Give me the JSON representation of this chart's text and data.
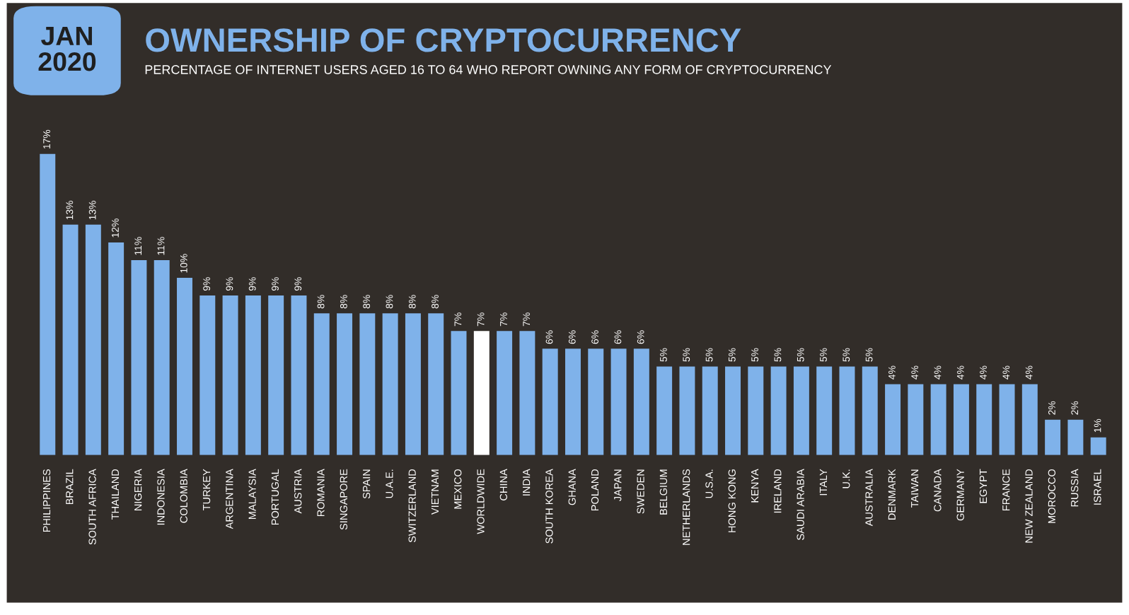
{
  "chart_data": {
    "type": "bar",
    "title": "OWNERSHIP OF CRYPTOCURRENCY",
    "subtitle": "PERCENTAGE OF INTERNET USERS AGED 16 TO 64 WHO REPORT OWNING ANY FORM OF CRYPTOCURRENCY",
    "annotations": [
      "JAN\n2020"
    ],
    "categories": [
      "PHILIPPINES",
      "BRAZIL",
      "SOUTH AFRICA",
      "THAILAND",
      "NIGERIA",
      "INDONESIA",
      "COLOMBIA",
      "TURKEY",
      "ARGENTINA",
      "MALAYSIA",
      "PORTUGAL",
      "AUSTRIA",
      "ROMANIA",
      "SINGAPORE",
      "SPAIN",
      "U.A.E.",
      "SWITZERLAND",
      "VIETNAM",
      "MEXICO",
      "WORLDWIDE",
      "CHINA",
      "INDIA",
      "SOUTH KOREA",
      "GHANA",
      "POLAND",
      "JAPAN",
      "SWEDEN",
      "BELGIUM",
      "NETHERLANDS",
      "U.S.A.",
      "HONG KONG",
      "KENYA",
      "IRELAND",
      "SAUDI ARABIA",
      "ITALY",
      "U.K.",
      "AUSTRALIA",
      "DENMARK",
      "TAIWAN",
      "CANADA",
      "GERMANY",
      "EGYPT",
      "FRANCE",
      "NEW ZEALAND",
      "MOROCCO",
      "RUSSIA",
      "ISRAEL"
    ],
    "values": [
      17,
      13,
      13,
      12,
      11,
      11,
      10,
      9,
      9,
      9,
      9,
      9,
      8,
      8,
      8,
      8,
      8,
      8,
      7,
      7,
      7,
      7,
      6,
      6,
      6,
      6,
      6,
      5,
      5,
      5,
      5,
      5,
      5,
      5,
      5,
      5,
      5,
      4,
      4,
      4,
      4,
      4,
      4,
      4,
      2,
      2,
      1
    ],
    "value_labels": [
      "17%",
      "13%",
      "13%",
      "12%",
      "11%",
      "11%",
      "10%",
      "9%",
      "9%",
      "9%",
      "9%",
      "9%",
      "8%",
      "8%",
      "8%",
      "8%",
      "8%",
      "8%",
      "7%",
      "7%",
      "7%",
      "7%",
      "6%",
      "6%",
      "6%",
      "6%",
      "6%",
      "5%",
      "5%",
      "5%",
      "5%",
      "5%",
      "5%",
      "5%",
      "5%",
      "5%",
      "5%",
      "4%",
      "4%",
      "4%",
      "4%",
      "4%",
      "4%",
      "4%",
      "2%",
      "2%",
      "1%"
    ],
    "colors": [
      "#7fb2ea",
      "#7fb2ea",
      "#7fb2ea",
      "#7fb2ea",
      "#7fb2ea",
      "#7fb2ea",
      "#7fb2ea",
      "#7fb2ea",
      "#7fb2ea",
      "#7fb2ea",
      "#7fb2ea",
      "#7fb2ea",
      "#7fb2ea",
      "#7fb2ea",
      "#7fb2ea",
      "#7fb2ea",
      "#7fb2ea",
      "#7fb2ea",
      "#7fb2ea",
      "#ffffff",
      "#7fb2ea",
      "#7fb2ea",
      "#7fb2ea",
      "#7fb2ea",
      "#7fb2ea",
      "#7fb2ea",
      "#7fb2ea",
      "#7fb2ea",
      "#7fb2ea",
      "#7fb2ea",
      "#7fb2ea",
      "#7fb2ea",
      "#7fb2ea",
      "#7fb2ea",
      "#7fb2ea",
      "#7fb2ea",
      "#7fb2ea",
      "#7fb2ea",
      "#7fb2ea",
      "#7fb2ea",
      "#7fb2ea",
      "#7fb2ea",
      "#7fb2ea",
      "#7fb2ea",
      "#7fb2ea",
      "#7fb2ea",
      "#7fb2ea"
    ],
    "tick_labels": "x",
    "grid": false
  }
}
